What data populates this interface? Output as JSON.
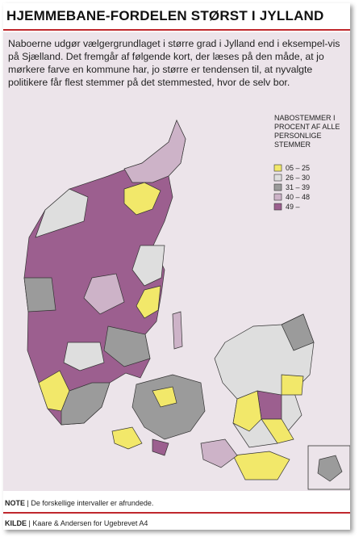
{
  "header": {
    "title": "HJEMMEBANE-FORDELEN STØRST I JYLLAND",
    "intro": "Naboerne udgør vælgergrundlaget i større grad i Jylland end i eksempel-vis på Sjælland. Det fremgår af følgende kort, der læses på den måde, at jo mørkere farve en kommune har, jo større er tendensen til, at nyvalgte politikere får flest stemmer på det stemmested, hvor de selv bor."
  },
  "legend": {
    "title": "NABOSTEMMER I PROCENT AF ALLE PERSONLIGE STEMMER",
    "items": [
      {
        "label": "05 – 25",
        "color": "#f2e86a"
      },
      {
        "label": "26 – 30",
        "color": "#dedede"
      },
      {
        "label": "31 – 39",
        "color": "#9b9b9b"
      },
      {
        "label": "40 – 48",
        "color": "#cdb3c8"
      },
      {
        "label": "49 –",
        "color": "#9c5f8f"
      }
    ]
  },
  "footer": {
    "note_label": "NOTE",
    "note": "De forskellige intervaller er afrundede.",
    "source_label": "KILDE",
    "source": "Kaare & Andersen for Ugebrevet A4"
  }
}
